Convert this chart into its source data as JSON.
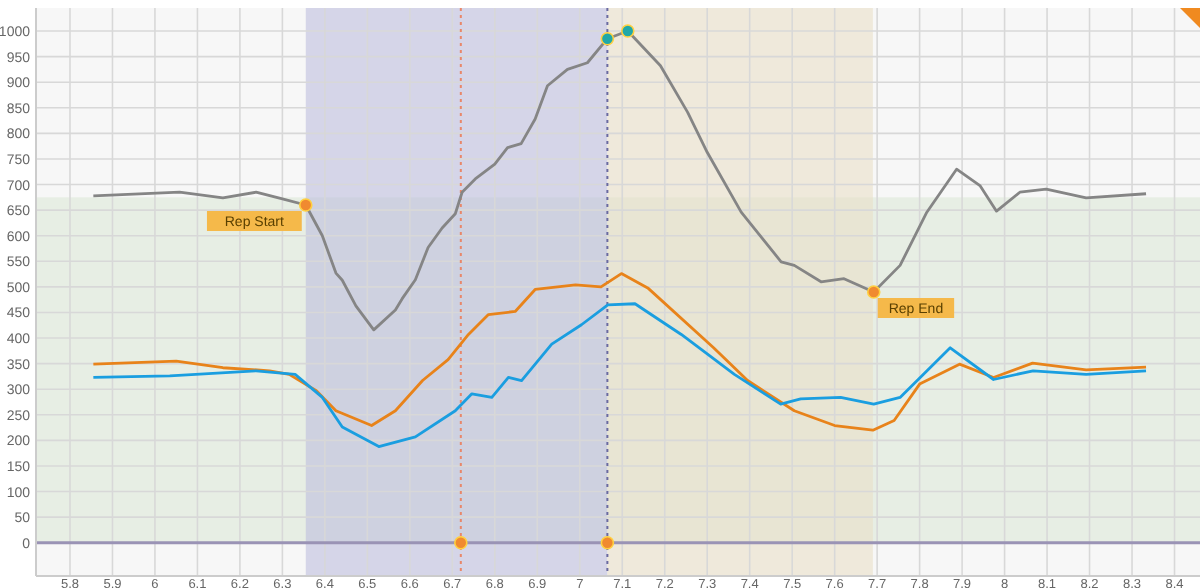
{
  "chart_data": {
    "type": "line",
    "xlim": [
      5.72,
      8.46
    ],
    "ylim": [
      -65,
      1045
    ],
    "xticks": [
      5.8,
      5.9,
      6,
      6.1,
      6.2,
      6.3,
      6.4,
      6.5,
      6.6,
      6.7,
      6.8,
      6.9,
      7,
      7.1,
      7.2,
      7.3,
      7.4,
      7.5,
      7.6,
      7.7,
      7.8,
      7.9,
      8,
      8.1,
      8.2,
      8.3,
      8.4
    ],
    "yticks": [
      0,
      50,
      100,
      150,
      200,
      250,
      300,
      350,
      400,
      450,
      500,
      550,
      600,
      650,
      700,
      750,
      800,
      850,
      900,
      950,
      1000
    ],
    "grid": true,
    "line_style": "solid",
    "bands": [
      {
        "axis": "y",
        "from": 0,
        "to": 675,
        "color": "#dfeadb"
      },
      {
        "axis": "x",
        "from": 6.355,
        "to": 7.065,
        "color": "#b9b9dc"
      },
      {
        "axis": "x",
        "from": 7.065,
        "to": 7.69,
        "color": "#eadfc4"
      }
    ],
    "ref_lines": [
      {
        "axis": "y",
        "value": 0,
        "color": "#9a93b5",
        "line_style": "solid"
      },
      {
        "axis": "x",
        "value": 6.72,
        "color": "#e8876a",
        "line_style": "dotted"
      },
      {
        "axis": "x",
        "value": 7.065,
        "color": "#6a6aa0",
        "line_style": "dotted"
      }
    ],
    "series": [
      {
        "color": "#858585",
        "x": [
          5.855,
          6.058,
          6.16,
          6.238,
          6.3,
          6.355,
          6.394,
          6.426,
          6.441,
          6.473,
          6.515,
          6.566,
          6.582,
          6.613,
          6.643,
          6.676,
          6.707,
          6.723,
          6.754,
          6.8,
          6.83,
          6.862,
          6.895,
          6.924,
          6.971,
          7.018,
          7.065,
          7.113,
          7.19,
          7.254,
          7.3,
          7.38,
          7.474,
          7.505,
          7.568,
          7.622,
          7.692,
          7.754,
          7.817,
          7.887,
          7.942,
          7.981,
          8.036,
          8.098,
          8.192,
          8.333
        ],
        "values": [
          678,
          685,
          674,
          685,
          672,
          660,
          600,
          527,
          513,
          463,
          416,
          455,
          477,
          514,
          577,
          615,
          643,
          685,
          711,
          740,
          772,
          780,
          828,
          893,
          925,
          938,
          985,
          1000,
          932,
          841,
          763,
          646,
          549,
          542,
          510,
          516,
          490,
          542,
          646,
          730,
          698,
          648,
          685,
          691,
          674,
          682
        ]
      },
      {
        "color": "#e8831a",
        "x": [
          5.855,
          6.05,
          6.16,
          6.27,
          6.316,
          6.38,
          6.426,
          6.51,
          6.566,
          6.63,
          6.69,
          6.738,
          6.785,
          6.848,
          6.895,
          6.99,
          7.05,
          7.098,
          7.16,
          7.315,
          7.395,
          7.505,
          7.6,
          7.69,
          7.74,
          7.8,
          7.894,
          7.974,
          8.066,
          8.192,
          8.333
        ],
        "values": [
          349,
          355,
          342,
          336,
          329,
          297,
          258,
          229,
          258,
          317,
          358,
          407,
          446,
          452,
          495,
          504,
          500,
          526,
          498,
          381,
          317,
          258,
          229,
          220,
          239,
          310,
          349,
          323,
          351,
          338,
          343
        ]
      },
      {
        "color": "#1a9ee0",
        "x": [
          5.855,
          6.035,
          6.238,
          6.33,
          6.394,
          6.441,
          6.527,
          6.613,
          6.707,
          6.746,
          6.793,
          6.832,
          6.863,
          6.934,
          7.004,
          7.066,
          7.13,
          7.239,
          7.364,
          7.473,
          7.52,
          7.614,
          7.692,
          7.754,
          7.872,
          7.974,
          8.067,
          8.192,
          8.333
        ],
        "values": [
          323,
          326,
          336,
          329,
          284,
          226,
          188,
          207,
          258,
          291,
          284,
          323,
          317,
          388,
          426,
          465,
          467,
          407,
          329,
          271,
          281,
          284,
          271,
          284,
          381,
          319,
          336,
          329,
          336
        ]
      },
      {
        "type": "scatter",
        "marker": "circle",
        "color": "#f08a30",
        "x": [
          6.355,
          7.692,
          6.72,
          7.065
        ],
        "values": [
          660,
          490,
          0,
          0
        ]
      },
      {
        "type": "scatter",
        "marker": "circle",
        "color": "#20a8a8",
        "x": [
          7.065,
          7.113
        ],
        "values": [
          985,
          1000
        ]
      }
    ],
    "annotations": [
      {
        "text": "Rep Start",
        "x": 6.355,
        "y": 660
      },
      {
        "text": "Rep End",
        "x": 7.692,
        "y": 490
      }
    ]
  }
}
